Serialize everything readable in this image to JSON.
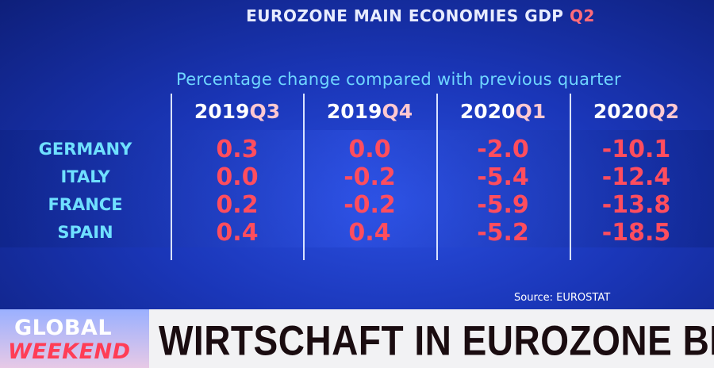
{
  "header": {
    "title": "EUROZONE MAIN ECONOMIES GDP",
    "title_highlight": "Q2",
    "subtitle": "Percentage change compared with previous quarter"
  },
  "table": {
    "columns": [
      {
        "year": "2019",
        "quarter": "Q3"
      },
      {
        "year": "2019",
        "quarter": "Q4"
      },
      {
        "year": "2020",
        "quarter": "Q1"
      },
      {
        "year": "2020",
        "quarter": "Q2"
      }
    ],
    "rows": [
      {
        "country": "GERMANY",
        "values": [
          "0.3",
          "0.0",
          "-2.0",
          "-10.1"
        ]
      },
      {
        "country": "ITALY",
        "values": [
          "0.0",
          "-0.2",
          "-5.4",
          "-12.4"
        ]
      },
      {
        "country": "FRANCE",
        "values": [
          "0.2",
          "-0.2",
          "-5.9",
          "-13.8"
        ]
      },
      {
        "country": "SPAIN",
        "values": [
          "0.4",
          "0.4",
          "-5.2",
          "-18.5"
        ]
      }
    ]
  },
  "source": "Source: EUROSTAT",
  "banner": {
    "logo_top": "GLOBAL",
    "logo_bottom": "WEEKEND",
    "headline": "WIRTSCHAFT IN EUROZONE BRICHT EIN"
  }
}
